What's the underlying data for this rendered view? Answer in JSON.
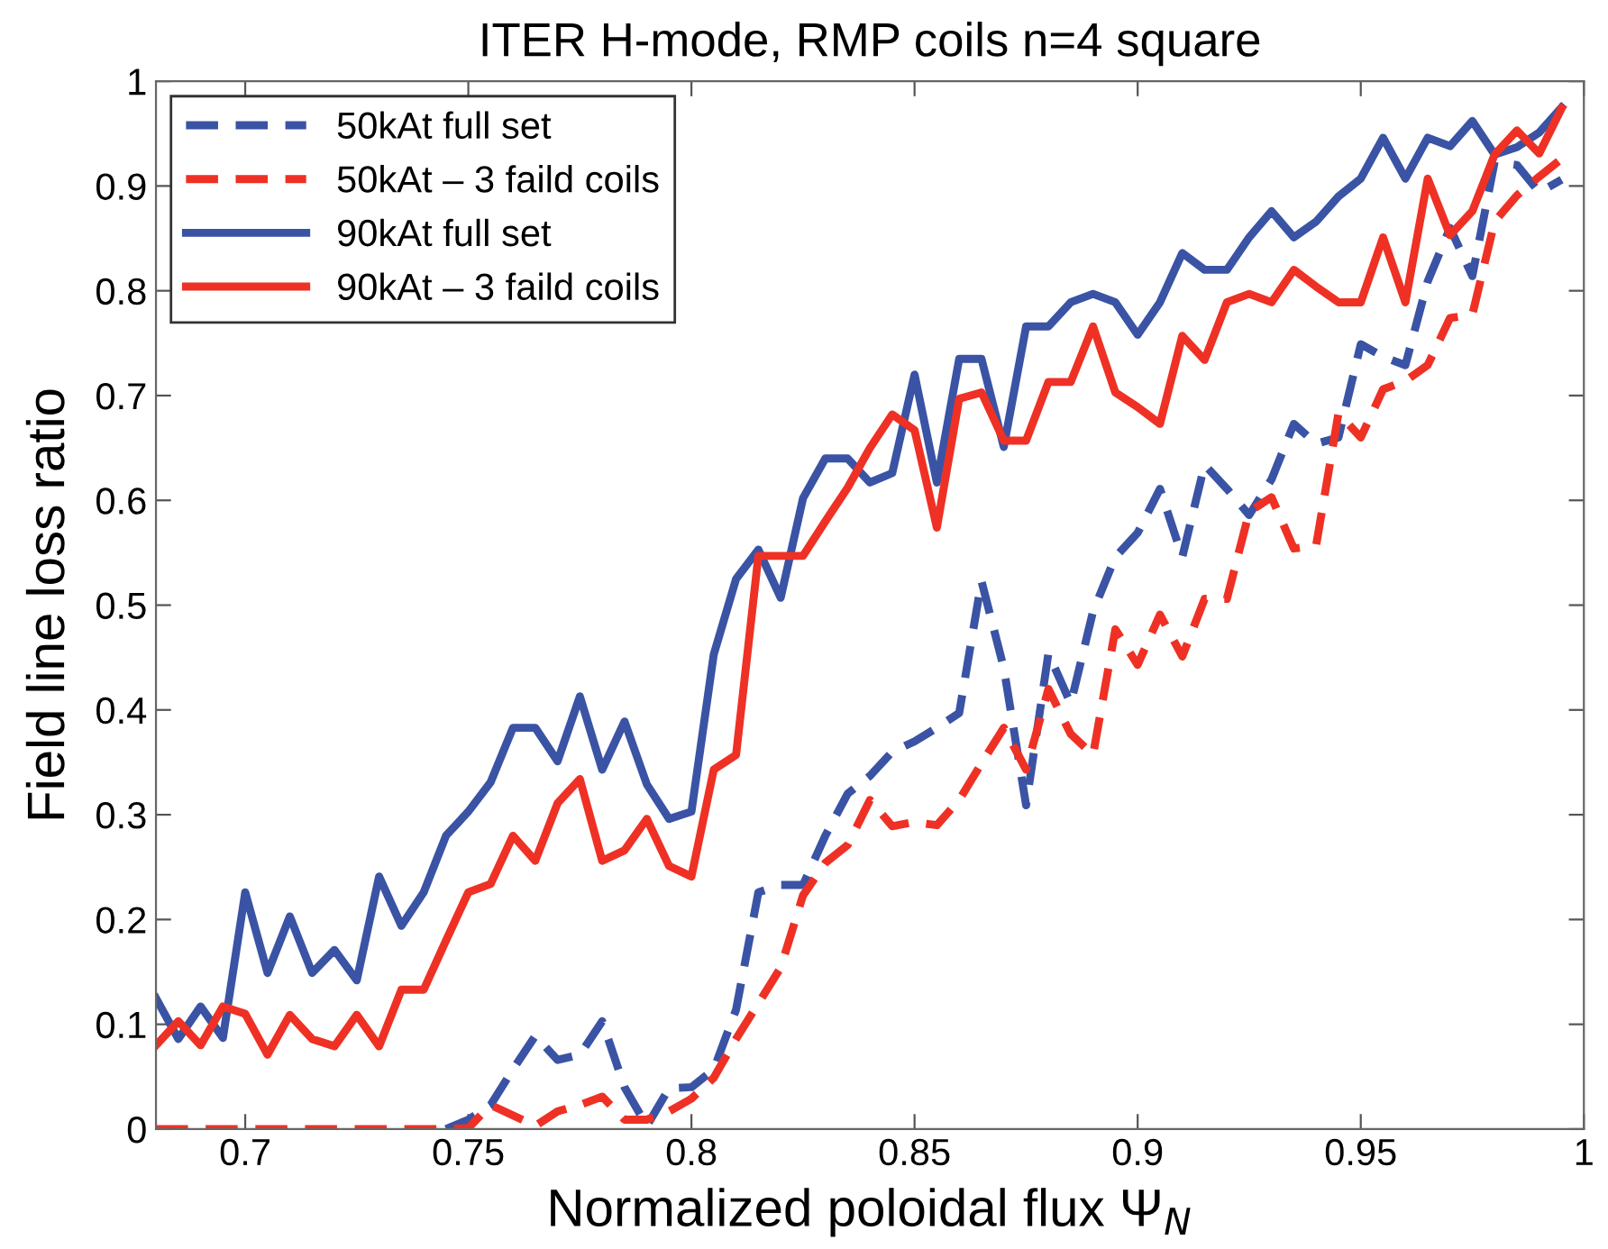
{
  "chart_data": {
    "type": "line",
    "title": "ITER H-mode, RMP coils n=4 square",
    "xlabel": "Normalized poloidal flux Ψ$_{N}$",
    "ylabel": "Field line loss ratio",
    "xlim": [
      0.68,
      1
    ],
    "ylim": [
      0,
      1
    ],
    "xticks": [
      0.7,
      0.75,
      0.8,
      0.85,
      0.9,
      0.95,
      1
    ],
    "yticks": [
      0,
      0.1,
      0.2,
      0.3,
      0.4,
      0.5,
      0.6,
      0.7,
      0.8,
      0.9,
      1
    ],
    "grid": false,
    "legend": "top left",
    "marker": "none",
    "series": [
      {
        "name": "50kAt full set",
        "color": "#3a53a4",
        "line_style": "dashed",
        "x": [
          0.745,
          0.75,
          0.755,
          0.76,
          0.765,
          0.77,
          0.775,
          0.78,
          0.785,
          0.79,
          0.795,
          0.8,
          0.805,
          0.81,
          0.815,
          0.82,
          0.825,
          0.83,
          0.835,
          0.84,
          0.845,
          0.85,
          0.855,
          0.86,
          0.865,
          0.87,
          0.875,
          0.88,
          0.885,
          0.89,
          0.895,
          0.9,
          0.905,
          0.91,
          0.915,
          0.92,
          0.925,
          0.93,
          0.935,
          0.94,
          0.945,
          0.95,
          0.955,
          0.96,
          0.965,
          0.97,
          0.975,
          0.98,
          0.985,
          0.99,
          0.995
        ],
        "values": [
          0,
          0.009,
          0.023,
          0.057,
          0.089,
          0.066,
          0.071,
          0.103,
          0.04,
          0.003,
          0.039,
          0.04,
          0.057,
          0.114,
          0.226,
          0.233,
          0.233,
          0.28,
          0.32,
          0.337,
          0.36,
          0.37,
          0.383,
          0.397,
          0.523,
          0.44,
          0.309,
          0.454,
          0.406,
          0.494,
          0.546,
          0.569,
          0.611,
          0.546,
          0.634,
          0.611,
          0.586,
          0.62,
          0.673,
          0.654,
          0.66,
          0.749,
          0.737,
          0.729,
          0.809,
          0.86,
          0.814,
          0.923,
          0.92,
          0.894,
          0.906
        ]
      },
      {
        "name": "50kAt – 3 faild coils",
        "color": "#ee3124",
        "line_style": "dashed",
        "x": [
          0.68,
          0.685,
          0.69,
          0.695,
          0.7,
          0.705,
          0.71,
          0.715,
          0.72,
          0.725,
          0.73,
          0.735,
          0.74,
          0.745,
          0.75,
          0.755,
          0.76,
          0.765,
          0.77,
          0.775,
          0.78,
          0.785,
          0.79,
          0.795,
          0.8,
          0.805,
          0.81,
          0.815,
          0.82,
          0.825,
          0.83,
          0.835,
          0.84,
          0.845,
          0.85,
          0.855,
          0.86,
          0.865,
          0.87,
          0.875,
          0.88,
          0.885,
          0.89,
          0.895,
          0.9,
          0.905,
          0.91,
          0.915,
          0.92,
          0.925,
          0.93,
          0.935,
          0.94,
          0.945,
          0.95,
          0.955,
          0.96,
          0.965,
          0.97,
          0.975,
          0.98,
          0.985,
          0.99,
          0.995
        ],
        "values": [
          0,
          0,
          0,
          0,
          0,
          0,
          0,
          0,
          0,
          0,
          0,
          0,
          0,
          0,
          0.001,
          0.023,
          0.013,
          0.003,
          0.017,
          0.023,
          0.031,
          0.009,
          0.009,
          0.017,
          0.029,
          0.049,
          0.086,
          0.12,
          0.154,
          0.223,
          0.254,
          0.271,
          0.314,
          0.289,
          0.293,
          0.29,
          0.314,
          0.349,
          0.383,
          0.343,
          0.42,
          0.377,
          0.357,
          0.477,
          0.443,
          0.491,
          0.451,
          0.506,
          0.506,
          0.589,
          0.603,
          0.554,
          0.557,
          0.683,
          0.66,
          0.706,
          0.714,
          0.729,
          0.774,
          0.777,
          0.866,
          0.891,
          0.909,
          0.926
        ]
      },
      {
        "name": "90kAt full set",
        "color": "#3a53a4",
        "line_style": "solid",
        "x": [
          0.68,
          0.685,
          0.69,
          0.695,
          0.7,
          0.705,
          0.71,
          0.715,
          0.72,
          0.725,
          0.73,
          0.735,
          0.74,
          0.745,
          0.75,
          0.755,
          0.76,
          0.765,
          0.77,
          0.775,
          0.78,
          0.785,
          0.79,
          0.795,
          0.8,
          0.805,
          0.81,
          0.815,
          0.82,
          0.825,
          0.83,
          0.835,
          0.84,
          0.845,
          0.85,
          0.855,
          0.86,
          0.865,
          0.87,
          0.875,
          0.88,
          0.885,
          0.89,
          0.895,
          0.9,
          0.905,
          0.91,
          0.915,
          0.92,
          0.925,
          0.93,
          0.935,
          0.94,
          0.945,
          0.95,
          0.955,
          0.96,
          0.965,
          0.97,
          0.975,
          0.98,
          0.985,
          0.99,
          0.995
        ],
        "values": [
          0.125,
          0.086,
          0.117,
          0.087,
          0.226,
          0.149,
          0.203,
          0.149,
          0.171,
          0.142,
          0.241,
          0.194,
          0.226,
          0.28,
          0.303,
          0.331,
          0.383,
          0.383,
          0.351,
          0.413,
          0.343,
          0.389,
          0.329,
          0.296,
          0.303,
          0.453,
          0.525,
          0.553,
          0.507,
          0.602,
          0.64,
          0.64,
          0.617,
          0.626,
          0.72,
          0.617,
          0.735,
          0.735,
          0.651,
          0.766,
          0.766,
          0.789,
          0.797,
          0.789,
          0.758,
          0.789,
          0.836,
          0.82,
          0.82,
          0.851,
          0.876,
          0.851,
          0.866,
          0.89,
          0.907,
          0.946,
          0.907,
          0.946,
          0.938,
          0.962,
          0.93,
          0.937,
          0.951,
          0.975
        ]
      },
      {
        "name": "90kAt – 3 faild coils",
        "color": "#ee3124",
        "line_style": "solid",
        "x": [
          0.68,
          0.685,
          0.69,
          0.695,
          0.7,
          0.705,
          0.71,
          0.715,
          0.72,
          0.725,
          0.73,
          0.735,
          0.74,
          0.745,
          0.75,
          0.755,
          0.76,
          0.765,
          0.77,
          0.775,
          0.78,
          0.785,
          0.79,
          0.795,
          0.8,
          0.805,
          0.81,
          0.815,
          0.82,
          0.825,
          0.83,
          0.835,
          0.84,
          0.845,
          0.85,
          0.855,
          0.86,
          0.865,
          0.87,
          0.875,
          0.88,
          0.885,
          0.89,
          0.895,
          0.9,
          0.905,
          0.91,
          0.915,
          0.92,
          0.925,
          0.93,
          0.935,
          0.94,
          0.945,
          0.95,
          0.955,
          0.96,
          0.965,
          0.97,
          0.975,
          0.98,
          0.985,
          0.99,
          0.995
        ],
        "values": [
          0.08,
          0.103,
          0.08,
          0.117,
          0.11,
          0.071,
          0.109,
          0.086,
          0.079,
          0.109,
          0.079,
          0.133,
          0.133,
          0.18,
          0.226,
          0.234,
          0.28,
          0.256,
          0.311,
          0.334,
          0.256,
          0.266,
          0.296,
          0.251,
          0.241,
          0.343,
          0.357,
          0.547,
          0.547,
          0.547,
          0.58,
          0.612,
          0.65,
          0.682,
          0.667,
          0.574,
          0.697,
          0.703,
          0.657,
          0.657,
          0.713,
          0.713,
          0.766,
          0.703,
          0.689,
          0.673,
          0.757,
          0.734,
          0.789,
          0.797,
          0.789,
          0.82,
          0.804,
          0.789,
          0.789,
          0.851,
          0.789,
          0.907,
          0.853,
          0.876,
          0.93,
          0.953,
          0.931,
          0.974
        ]
      }
    ]
  }
}
